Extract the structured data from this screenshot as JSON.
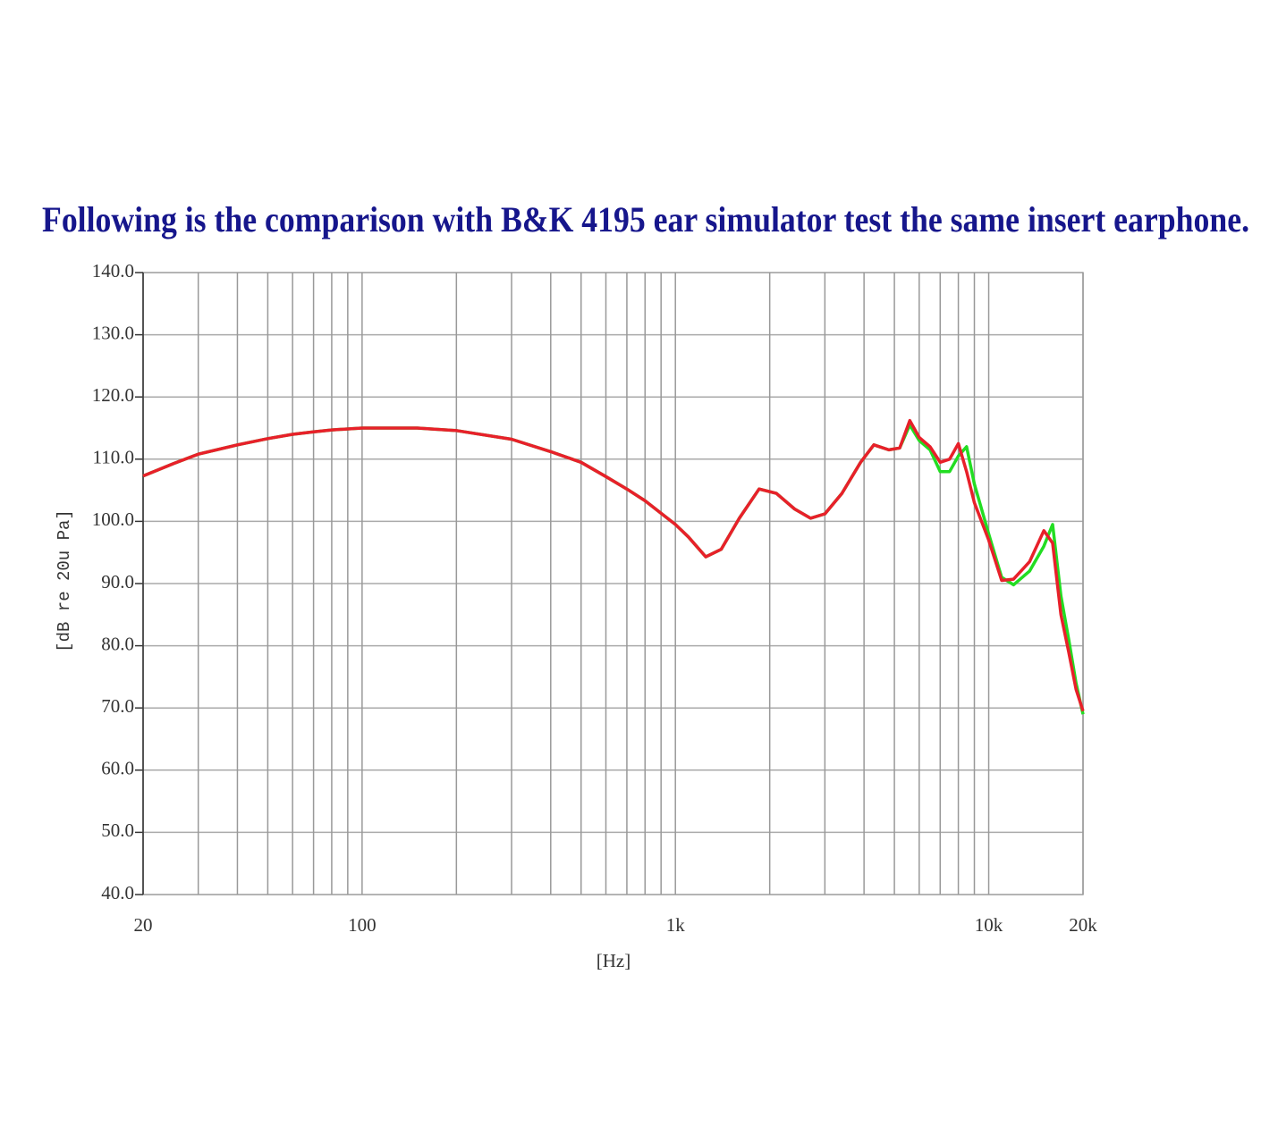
{
  "chart_data": {
    "type": "line",
    "title": "Following is the comparison with B&K 4195 ear simulator test the same insert earphone.",
    "x_label": "[Hz]",
    "y_label": "[dB re 20u Pa]",
    "xscale": "log",
    "xlim": [
      20,
      20000
    ],
    "xticks": [
      20,
      100,
      {
        "value": 1000,
        "label": "1k"
      },
      {
        "value": 10000,
        "label": "10k"
      },
      {
        "value": 20000,
        "label": "20k"
      }
    ],
    "xminor": [
      30,
      40,
      50,
      60,
      70,
      80,
      90,
      200,
      300,
      400,
      500,
      600,
      700,
      800,
      900,
      2000,
      3000,
      4000,
      5000,
      6000,
      7000,
      8000,
      9000
    ],
    "ylim": [
      40,
      140
    ],
    "yticks": [
      {
        "value": 40,
        "label": "40.0"
      },
      {
        "value": 50,
        "label": "50.0"
      },
      {
        "value": 60,
        "label": "60.0"
      },
      {
        "value": 70,
        "label": "70.0"
      },
      {
        "value": 80,
        "label": "80.0"
      },
      {
        "value": 90,
        "label": "90.0"
      },
      {
        "value": 100,
        "label": "100.0"
      },
      {
        "value": 110,
        "label": "110.0"
      },
      {
        "value": 120,
        "label": "120.0"
      },
      {
        "value": 130,
        "label": "130.0"
      },
      {
        "value": 140,
        "label": "140.0"
      }
    ],
    "grid": true,
    "x": [
      20,
      25,
      30,
      40,
      50,
      60,
      70,
      80,
      100,
      150,
      200,
      300,
      400,
      500,
      600,
      700,
      800,
      900,
      1000,
      1100,
      1250,
      1400,
      1600,
      1850,
      2100,
      2400,
      2700,
      3000,
      3400,
      3900,
      4300,
      4800,
      5200,
      5600,
      6000,
      6500,
      7000,
      7500,
      8000,
      8500,
      9000,
      10000,
      11000,
      12000,
      13500,
      15000,
      16000,
      17000,
      18000,
      19000,
      20000
    ],
    "series": [
      {
        "color": "#22dd22",
        "values": [
          107.3,
          109.3,
          110.8,
          112.3,
          113.3,
          114,
          114.4,
          114.7,
          115,
          115,
          114.6,
          113.2,
          111.2,
          109.5,
          107.2,
          105.2,
          103.3,
          101.3,
          99.5,
          97.5,
          94.3,
          95.5,
          100.5,
          105.2,
          104.5,
          102,
          100.5,
          101.2,
          104.5,
          109.5,
          112.3,
          111.5,
          111.8,
          115.5,
          113,
          111.5,
          108,
          108,
          110.5,
          112,
          106,
          98,
          91,
          89.8,
          92,
          96,
          99.5,
          88,
          81,
          74,
          69
        ]
      },
      {
        "color": "#e8202a",
        "values": [
          107.3,
          109.3,
          110.8,
          112.3,
          113.3,
          114,
          114.4,
          114.7,
          115,
          115,
          114.6,
          113.2,
          111.2,
          109.5,
          107.2,
          105.2,
          103.3,
          101.3,
          99.5,
          97.5,
          94.3,
          95.5,
          100.5,
          105.2,
          104.5,
          102,
          100.5,
          101.2,
          104.5,
          109.5,
          112.3,
          111.5,
          111.8,
          116.2,
          113.5,
          112,
          109.5,
          110,
          112.5,
          108,
          103,
          97,
          90.5,
          90.7,
          93.5,
          98.5,
          96.5,
          85,
          79,
          73,
          69.5
        ]
      }
    ]
  }
}
